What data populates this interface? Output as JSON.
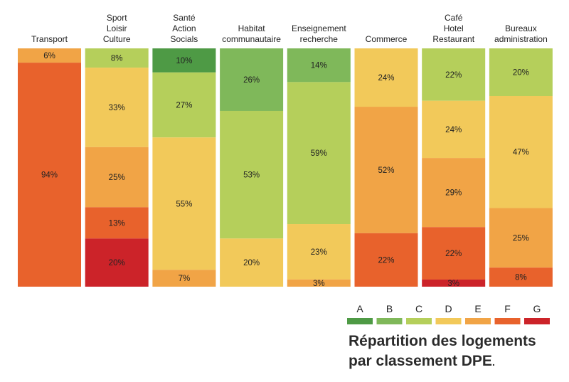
{
  "chart_data": {
    "type": "bar",
    "stacked": true,
    "normalized_percent": true,
    "categories": [
      [
        "Transport"
      ],
      [
        "Sport",
        "Loisir",
        "Culture"
      ],
      [
        "Santé",
        "Action",
        "Socials"
      ],
      [
        "Habitat",
        "communautaire"
      ],
      [
        "Enseignement",
        "recherche"
      ],
      [
        "Commerce"
      ],
      [
        "Café",
        "Hotel",
        "Restaurant"
      ],
      [
        "Bureaux",
        "administration"
      ]
    ],
    "series": [
      {
        "name": "A",
        "color": "#4e9a45",
        "values": [
          0,
          0,
          10,
          0,
          0,
          0,
          0,
          0
        ]
      },
      {
        "name": "B",
        "color": "#7fb85a",
        "values": [
          0,
          0,
          0,
          26,
          14,
          0,
          0,
          0
        ]
      },
      {
        "name": "C",
        "color": "#b5cf5b",
        "values": [
          0,
          8,
          27,
          53,
          59,
          0,
          22,
          20
        ]
      },
      {
        "name": "D",
        "color": "#f2c95a",
        "values": [
          0,
          33,
          55,
          20,
          23,
          24,
          24,
          47
        ]
      },
      {
        "name": "E",
        "color": "#f1a446",
        "values": [
          6,
          25,
          7,
          0,
          3,
          52,
          29,
          25
        ]
      },
      {
        "name": "F",
        "color": "#e8622c",
        "values": [
          94,
          13,
          0,
          0,
          0,
          22,
          22,
          8
        ]
      },
      {
        "name": "G",
        "color": "#cc2329",
        "values": [
          0,
          20,
          0,
          0,
          0,
          0,
          3,
          0
        ]
      }
    ],
    "value_suffix": "%",
    "legend_position": "bottom-right",
    "grid": false
  },
  "caption": {
    "line1": "Répartition des logements",
    "line2": "par classement DPE",
    "line2_end": "."
  }
}
